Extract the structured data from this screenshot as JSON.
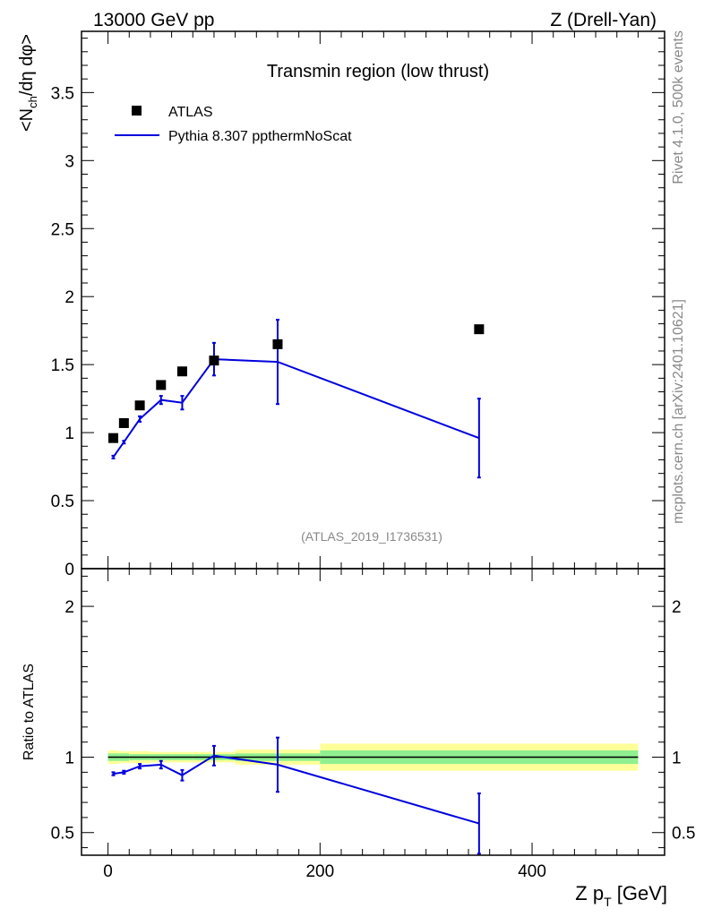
{
  "header": {
    "energy": "13000 GeV pp",
    "process": "Z (Drell-Yan)"
  },
  "side": {
    "rivet": "Rivet 4.1.0,  500k events",
    "mcplots": "mcplots.cern.ch [arXiv:2401.10621]"
  },
  "colors": {
    "mc": "#0000dd",
    "data": "#000000",
    "band_inner": "#90f090",
    "band_outer": "#ffff99",
    "analysis_label": "#888888"
  },
  "chart_data": [
    {
      "type": "scatter",
      "title": "Transmin region (low thrust)",
      "xlabel": "",
      "ylabel": "<N_ch/dη dφ>",
      "xlim": [
        -25,
        525
      ],
      "ylim": [
        0,
        3.95
      ],
      "analysis_label": "(ATLAS_2019_I1736531)",
      "yticks": [
        0,
        0.5,
        1,
        1.5,
        2,
        2.5,
        3,
        3.5
      ],
      "yticklabels": [
        "0",
        "0.5",
        "1",
        "1.5",
        "2",
        "2.5",
        "3",
        "3.5"
      ],
      "legend": {
        "position": "top-left",
        "entries": [
          "ATLAS",
          "Pythia 8.307 ppthermNoScat"
        ]
      },
      "series": [
        {
          "name": "ATLAS",
          "kind": "markers",
          "x": [
            5,
            15,
            30,
            50,
            70,
            100,
            160,
            350
          ],
          "y": [
            0.96,
            1.07,
            1.2,
            1.35,
            1.45,
            1.53,
            1.65,
            1.76
          ]
        },
        {
          "name": "Pythia 8.307 ppthermNoScat",
          "kind": "line",
          "x": [
            5,
            15,
            30,
            50,
            70,
            100,
            160,
            350
          ],
          "y": [
            0.82,
            0.93,
            1.1,
            1.24,
            1.22,
            1.54,
            1.52,
            0.96
          ],
          "yerr": [
            0.01,
            0.01,
            0.02,
            0.03,
            0.05,
            0.12,
            0.31,
            0.29
          ]
        }
      ]
    },
    {
      "type": "line",
      "title": "",
      "xlabel": "Z p_T [GeV]",
      "ylabel": "Ratio to ATLAS",
      "xlim": [
        -25,
        525
      ],
      "ylim": [
        0.35,
        2.25
      ],
      "xticks": [
        0,
        200,
        400
      ],
      "xticklabels": [
        "0",
        "200",
        "400"
      ],
      "yticks": [
        0.5,
        1,
        2
      ],
      "yticklabels": [
        "0.5",
        "1",
        "2"
      ],
      "reference_line": 1,
      "data_band": {
        "edges": [
          0,
          10,
          20,
          40,
          60,
          80,
          120,
          200,
          500
        ],
        "inner_err": [
          0.025,
          0.025,
          0.02,
          0.02,
          0.02,
          0.02,
          0.025,
          0.045
        ],
        "outer_err": [
          0.045,
          0.04,
          0.04,
          0.035,
          0.035,
          0.035,
          0.05,
          0.09
        ]
      },
      "series": [
        {
          "name": "Pythia 8.307 ppthermNoScat",
          "x": [
            5,
            15,
            30,
            50,
            70,
            100,
            160,
            350
          ],
          "y": [
            0.89,
            0.9,
            0.94,
            0.95,
            0.88,
            1.01,
            0.95,
            0.56
          ],
          "yerr": [
            0.01,
            0.01,
            0.015,
            0.025,
            0.035,
            0.065,
            0.18,
            0.2
          ]
        }
      ]
    }
  ]
}
